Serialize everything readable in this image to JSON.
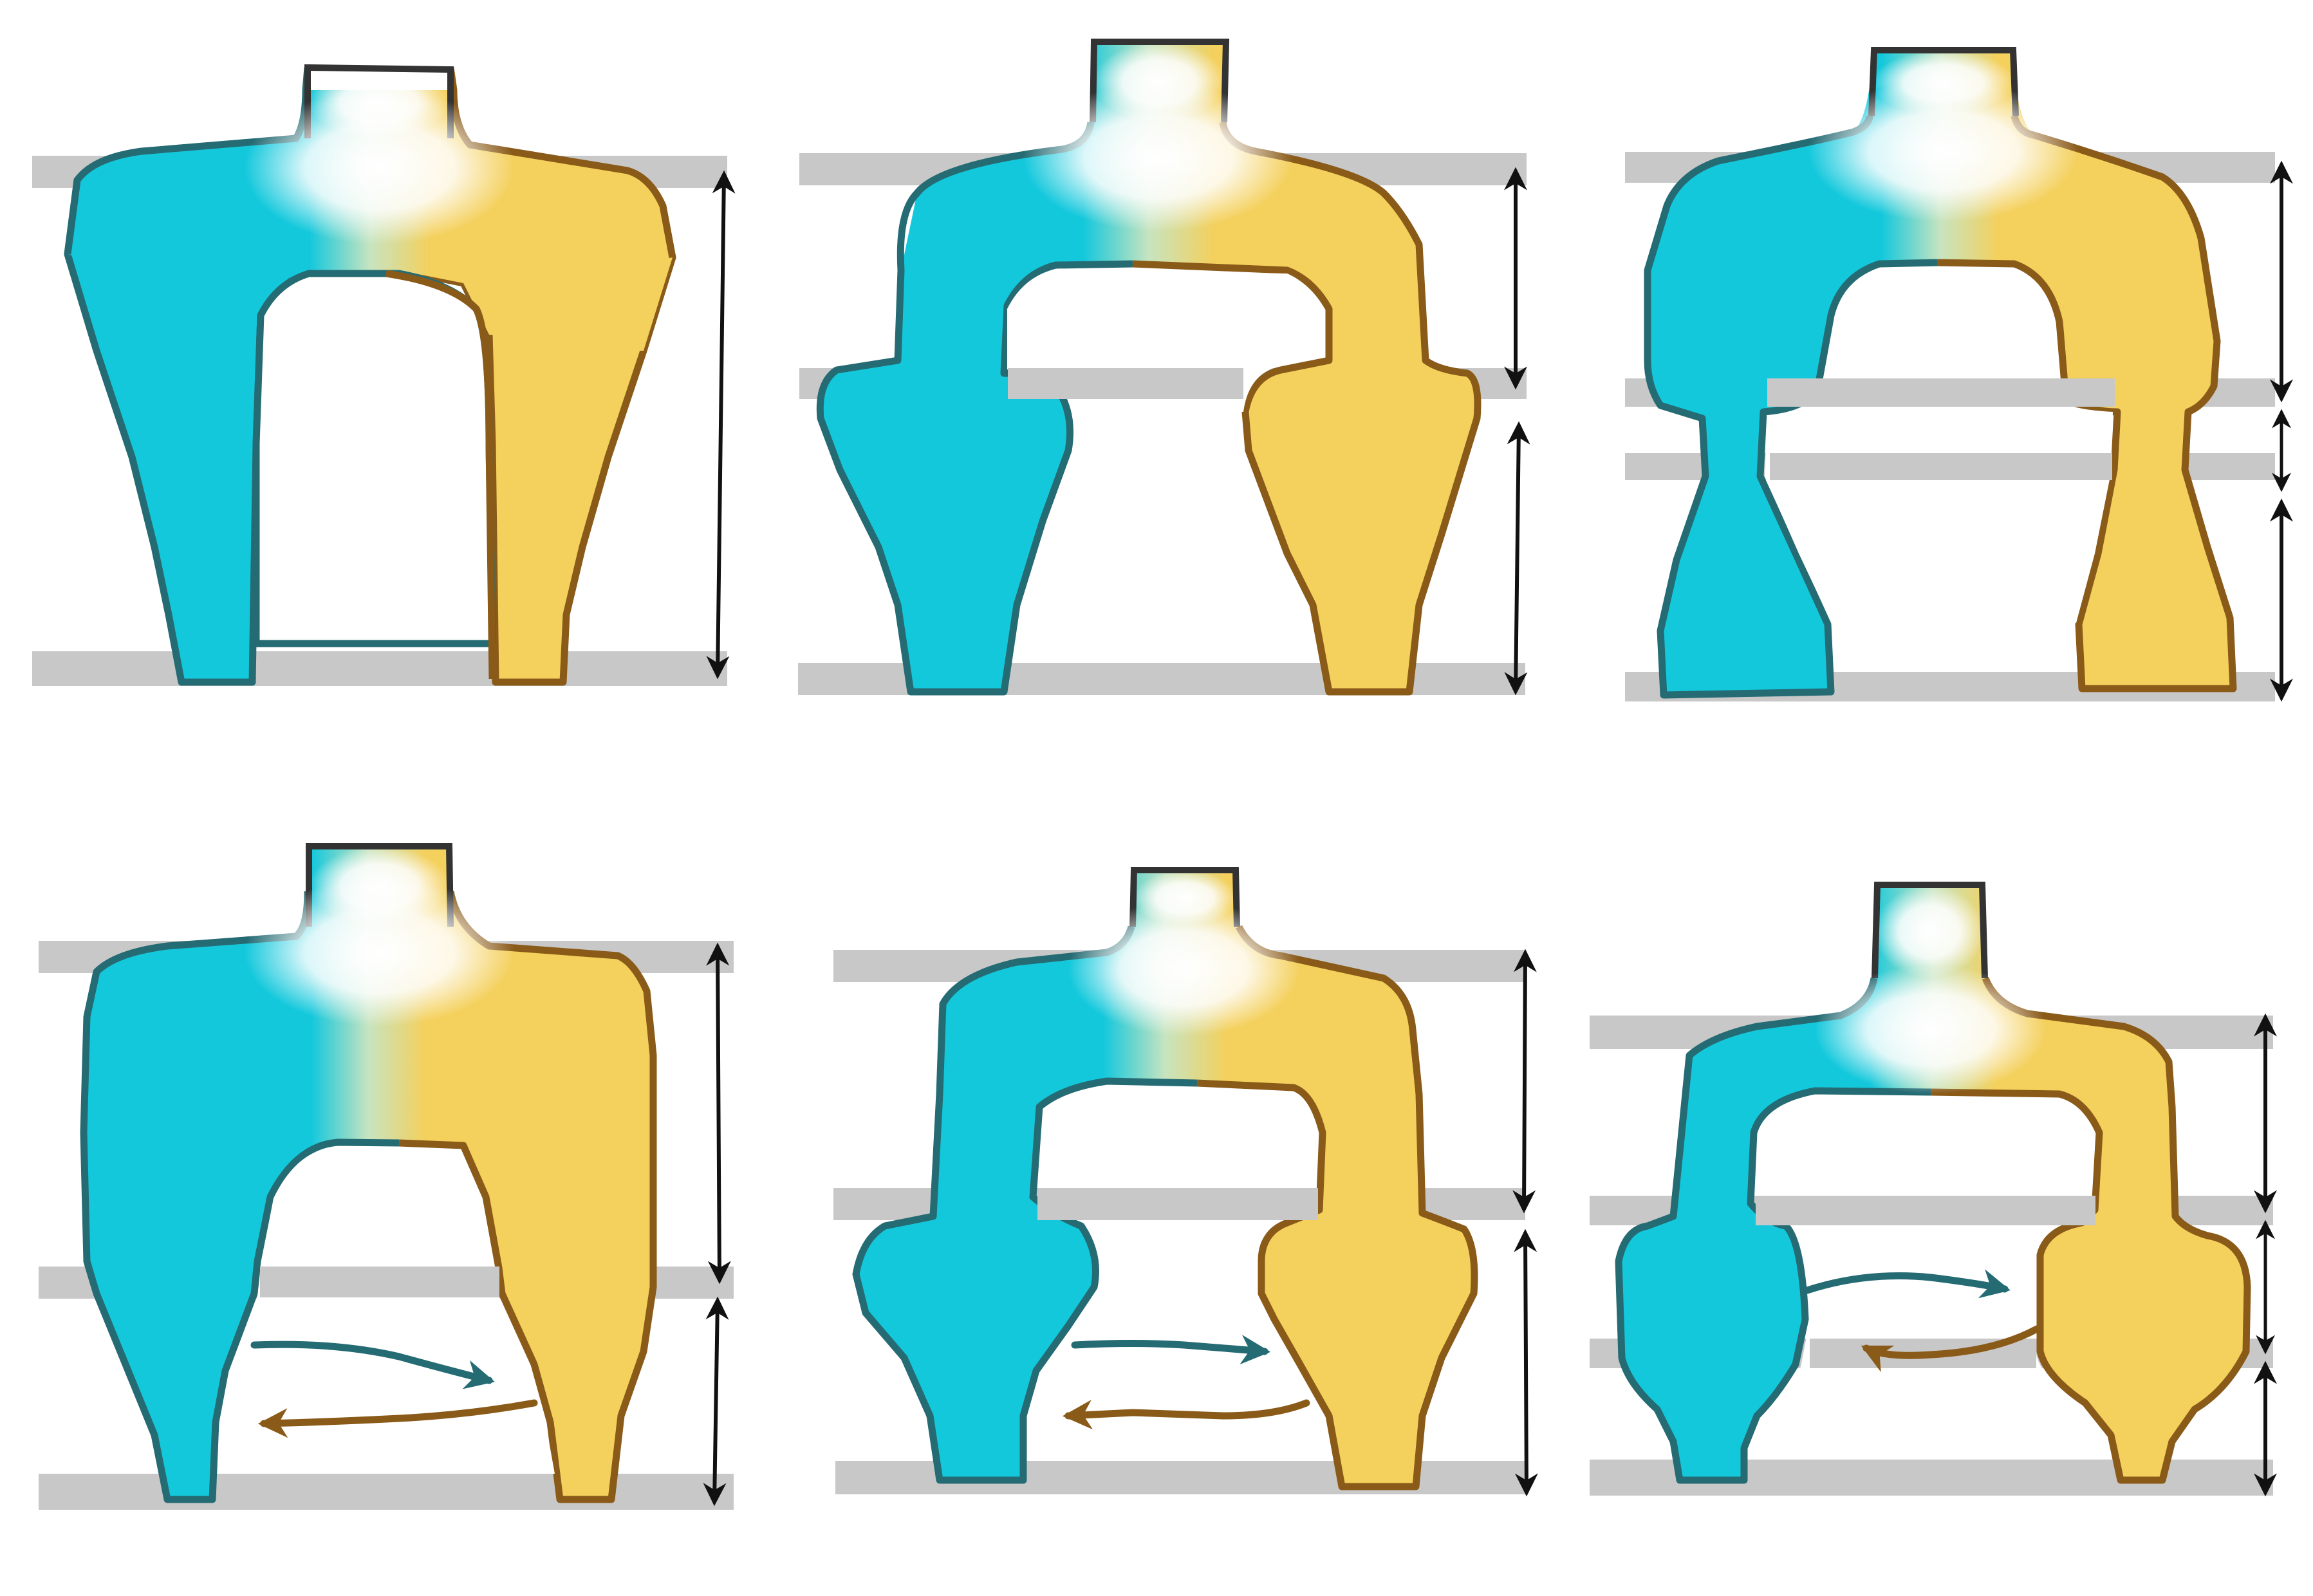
{
  "figure": {
    "layout": {
      "rows": 2,
      "columns": 3
    },
    "colors": {
      "background": "#ffffff",
      "band": "#c8c8c8",
      "cyan_fill": "#14c8dc",
      "cyan_outline": "#256b73",
      "yellow_fill": "#f4d05c",
      "yellow_outline": "#8a5a18",
      "neck_outline": "#333333",
      "dimension_arrow": "#111111"
    },
    "panels": [
      {
        "id": "top-1",
        "variant": "simple-arch",
        "dimension_segments": 1,
        "exchange_arrows": false
      },
      {
        "id": "top-2",
        "variant": "stepped-arch",
        "dimension_segments": 2,
        "exchange_arrows": false
      },
      {
        "id": "top-3",
        "variant": "pinched-arch",
        "dimension_segments": 3,
        "exchange_arrows": false
      },
      {
        "id": "bottom-1",
        "variant": "simple-arch",
        "dimension_segments": 2,
        "exchange_arrows": true
      },
      {
        "id": "bottom-2",
        "variant": "stepped-arch",
        "dimension_segments": 2,
        "exchange_arrows": true
      },
      {
        "id": "bottom-3",
        "variant": "stepped-arch",
        "dimension_segments": 3,
        "exchange_arrows": true
      }
    ]
  }
}
